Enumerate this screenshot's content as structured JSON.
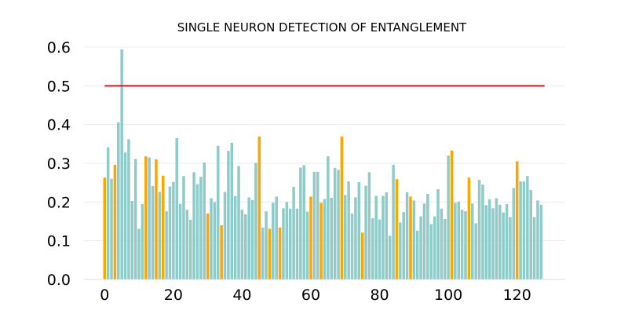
{
  "chart_data": {
    "type": "bar",
    "title": "SINGLE NEURON DETECTION OF ENTANGLEMENT",
    "xlabel": "",
    "ylabel": "",
    "xlim": [
      -6,
      134
    ],
    "ylim": [
      0,
      0.6
    ],
    "x_ticks": [
      0,
      20,
      40,
      60,
      80,
      100,
      120
    ],
    "x_tick_labels": [
      "0",
      "20",
      "40",
      "60",
      "80",
      "100",
      "120"
    ],
    "y_ticks": [
      0.0,
      0.1,
      0.2,
      0.3,
      0.4,
      0.5,
      0.6
    ],
    "y_tick_labels": [
      "0.0",
      "0.1",
      "0.2",
      "0.3",
      "0.4",
      "0.5",
      "0.6"
    ],
    "grid": true,
    "colors": {
      "default_bar": "#8ecbc9",
      "highlight_bar": "#ffa500",
      "threshold_line": "#e0101a"
    },
    "threshold": {
      "value": 0.5,
      "x_start": 0,
      "x_end": 128
    },
    "highlighted_indices": [
      0,
      3,
      12,
      15,
      17,
      30,
      34,
      45,
      48,
      51,
      60,
      63,
      69,
      75,
      85,
      89,
      101,
      106,
      120
    ],
    "values": [
      0.263,
      0.341,
      0.26,
      0.296,
      0.406,
      0.594,
      0.328,
      0.362,
      0.203,
      0.311,
      0.131,
      0.195,
      0.318,
      0.315,
      0.241,
      0.31,
      0.226,
      0.268,
      0.176,
      0.24,
      0.252,
      0.365,
      0.195,
      0.267,
      0.18,
      0.154,
      0.277,
      0.246,
      0.265,
      0.302,
      0.17,
      0.21,
      0.2,
      0.345,
      0.14,
      0.226,
      0.332,
      0.353,
      0.215,
      0.293,
      0.18,
      0.168,
      0.212,
      0.205,
      0.301,
      0.369,
      0.134,
      0.176,
      0.131,
      0.198,
      0.214,
      0.134,
      0.184,
      0.2,
      0.183,
      0.239,
      0.183,
      0.289,
      0.295,
      0.175,
      0.214,
      0.278,
      0.278,
      0.198,
      0.208,
      0.318,
      0.211,
      0.288,
      0.283,
      0.369,
      0.218,
      0.253,
      0.17,
      0.212,
      0.251,
      0.121,
      0.242,
      0.277,
      0.158,
      0.216,
      0.155,
      0.216,
      0.225,
      0.113,
      0.296,
      0.259,
      0.147,
      0.174,
      0.225,
      0.214,
      0.204,
      0.126,
      0.163,
      0.196,
      0.221,
      0.143,
      0.163,
      0.233,
      0.183,
      0.156,
      0.32,
      0.333,
      0.198,
      0.201,
      0.18,
      0.176,
      0.263,
      0.196,
      0.145,
      0.257,
      0.245,
      0.192,
      0.207,
      0.184,
      0.21,
      0.193,
      0.173,
      0.195,
      0.161,
      0.236,
      0.305,
      0.253,
      0.253,
      0.267,
      0.231,
      0.161,
      0.204,
      0.193
    ]
  }
}
